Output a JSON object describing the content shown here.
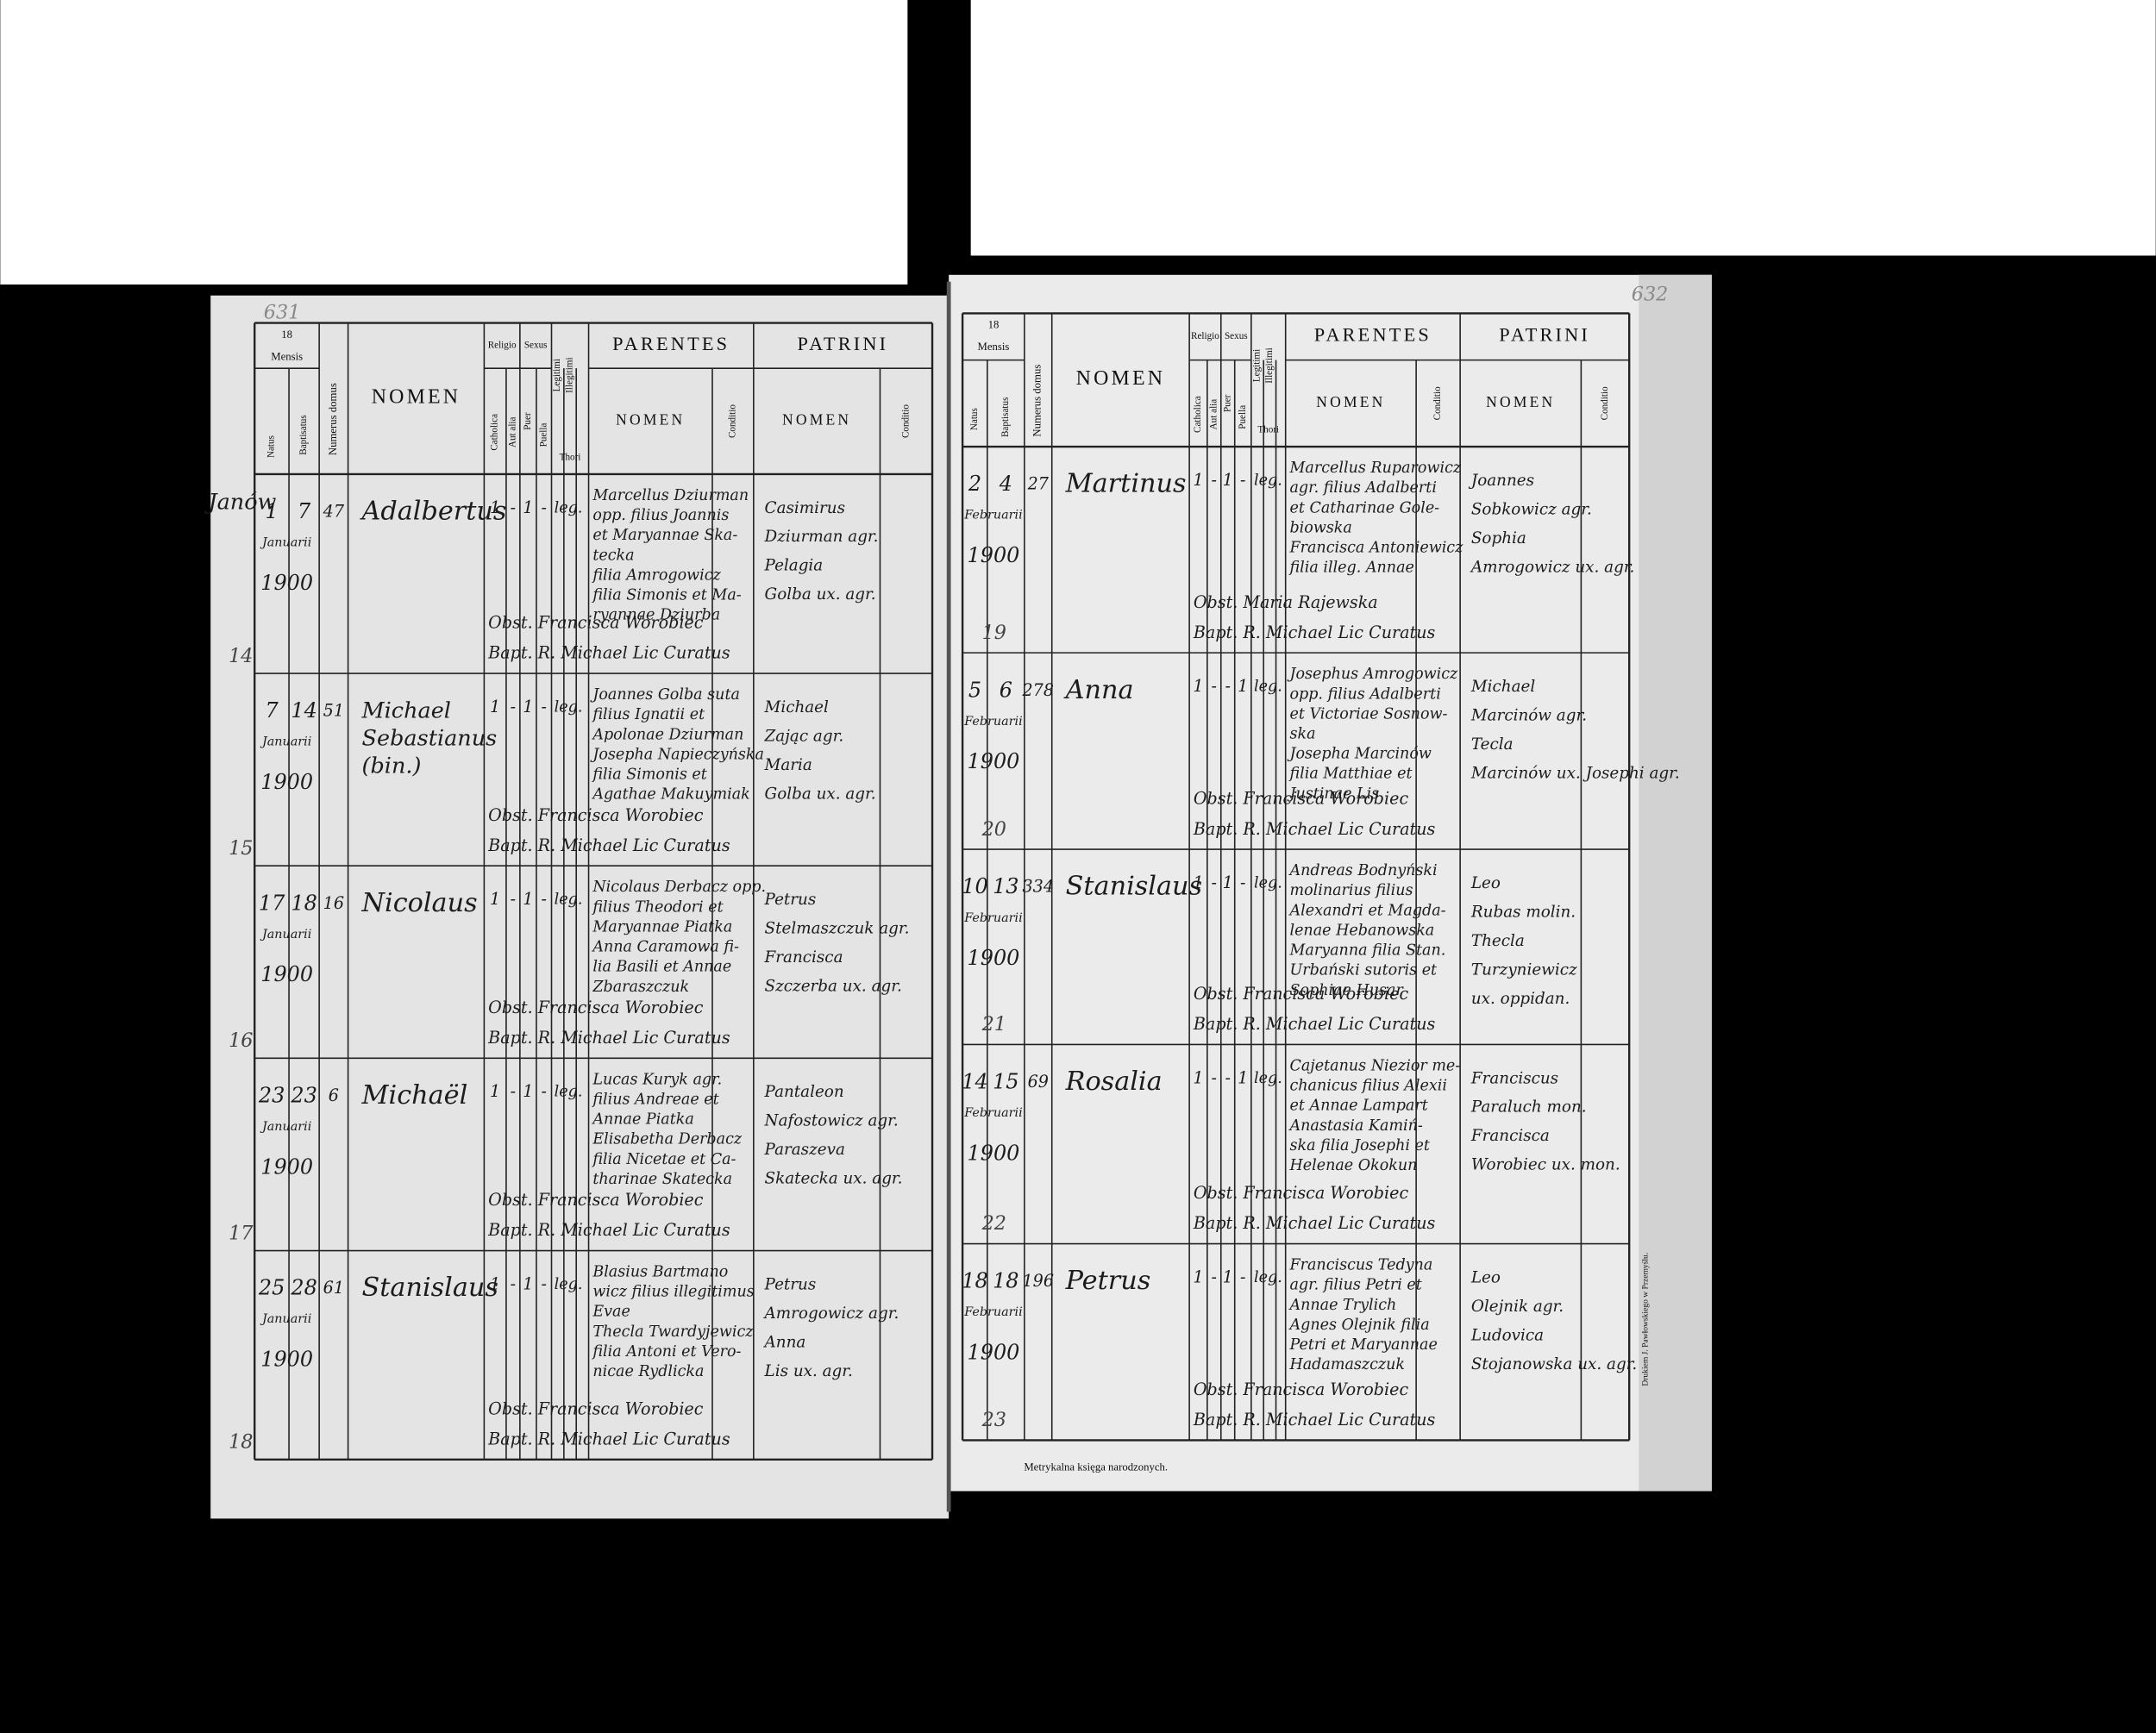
{
  "header": {
    "year": "18",
    "mensis": "Mensis",
    "natus": "Natus",
    "baptisatus": "Baptisatus",
    "domus": "Numerus domus",
    "nomen": "NOMEN",
    "religio": "Religio",
    "catholica": "Catholica",
    "aut_alia": "Aut alia",
    "sexus": "Sexus",
    "puer": "Puer",
    "puella": "Puella",
    "legitimi": "Legitimi",
    "illegitimi": "Illegitimi",
    "thori": "Thori",
    "parentes": "PARENTES",
    "parentes_nomen": "NOMEN",
    "conditio": "Conditio",
    "patrini": "PATRINI",
    "patrini_nomen": "NOMEN"
  },
  "pages": [
    {
      "folio": "631",
      "place": "Janów",
      "records": [
        {
          "natus": "1",
          "baptisatus": "7",
          "mensis": "Januarii",
          "annus": "1900",
          "domus": "47",
          "nomen": [
            "Adalbertus"
          ],
          "catholica": "1",
          "aut_alia": "-",
          "puer": "1",
          "puella": "-",
          "legitimi": "leg.",
          "parentes": [
            "Marcellus Dziurman",
            "opp. filius Joannis",
            "et Maryannae Ska-",
            "tecka",
            "filia Amrogowicz",
            "filia Simonis et Ma-",
            "ryannae Dziurba"
          ],
          "patrini": [
            "Casimirus",
            "Dziurman agr.",
            "Pelagia",
            "Golba ux. agr."
          ],
          "obstetrix": "Obst. Francisca Worobiec",
          "baptizans": "Bapt. R. Michael Lic Curatus",
          "number": "14"
        },
        {
          "natus": "7",
          "baptisatus": "14",
          "mensis": "Januarii",
          "annus": "1900",
          "domus": "51",
          "nomen": [
            "Michael",
            "Sebastianus",
            "(bin.)"
          ],
          "catholica": "1",
          "aut_alia": "-",
          "puer": "1",
          "puella": "-",
          "legitimi": "leg.",
          "parentes": [
            "Joannes Golba suta",
            "filius Ignatii et",
            "Apolonae Dziurman",
            "Josepha Napieczyńska",
            "filia Simonis et",
            "Agathae Makuymiak"
          ],
          "patrini": [
            "Michael",
            "Zając agr.",
            "Maria",
            "Golba ux. agr."
          ],
          "obstetrix": "Obst. Francisca Worobiec",
          "baptizans": "Bapt. R. Michael Lic Curatus",
          "number": "15"
        },
        {
          "natus": "17",
          "baptisatus": "18",
          "mensis": "Januarii",
          "annus": "1900",
          "domus": "16",
          "nomen": [
            "Nicolaus"
          ],
          "catholica": "1",
          "aut_alia": "-",
          "puer": "1",
          "puella": "-",
          "legitimi": "leg.",
          "parentes": [
            "Nicolaus Derbacz opp.",
            "filius Theodori et",
            "Maryannae Piatka",
            "Anna Caramowa fi-",
            "lia Basili et Annae",
            "Zbaraszczuk"
          ],
          "patrini": [
            "Petrus",
            "Stelmaszczuk agr.",
            "Francisca",
            "Szczerba ux. agr."
          ],
          "obstetrix": "Obst. Francisca Worobiec",
          "baptizans": "Bapt. R. Michael Lic Curatus",
          "number": "16"
        },
        {
          "natus": "23",
          "baptisatus": "23",
          "mensis": "Januarii",
          "annus": "1900",
          "domus": "6",
          "nomen": [
            "Michaël"
          ],
          "catholica": "1",
          "aut_alia": "-",
          "puer": "1",
          "puella": "-",
          "legitimi": "leg.",
          "parentes": [
            "Lucas Kuryk agr.",
            "filius Andreae et",
            "Annae Piatka",
            "Elisabetha Derbacz",
            "filia Nicetae et Ca-",
            "tharinae Skatecka"
          ],
          "patrini": [
            "Pantaleon",
            "Nafostowicz agr.",
            "Paraszeva",
            "Skatecka ux. agr."
          ],
          "obstetrix": "Obst. Francisca Worobiec",
          "baptizans": "Bapt. R. Michael Lic Curatus",
          "number": "17"
        },
        {
          "natus": "25",
          "baptisatus": "28",
          "mensis": "Januarii",
          "annus": "1900",
          "domus": "61",
          "nomen": [
            "Stanislaus"
          ],
          "catholica": "1",
          "aut_alia": "-",
          "puer": "1",
          "puella": "-",
          "legitimi": "leg.",
          "parentes": [
            "Blasius Bartmano",
            "wicz filius illegitimus",
            "Evae",
            "Thecla Twardyjewicz",
            "filia Antoni et Vero-",
            "nicae Rydlicka"
          ],
          "patrini": [
            "Petrus",
            "Amrogowicz agr.",
            "Anna",
            "Lis ux. agr."
          ],
          "obstetrix": "Obst. Francisca Worobiec",
          "baptizans": "Bapt. R. Michael Lic Curatus",
          "number": "18"
        }
      ]
    },
    {
      "folio": "632",
      "footer": "Metrykalna księga narodzonych.",
      "imprint": "Drukiem J. Pawłowskiego w Przemyślu.",
      "records": [
        {
          "natus": "2",
          "baptisatus": "4",
          "mensis": "Februarii",
          "annus": "1900",
          "domus": "27",
          "nomen": [
            "Martinus"
          ],
          "catholica": "1",
          "aut_alia": "-",
          "puer": "1",
          "puella": "-",
          "legitimi": "leg.",
          "parentes": [
            "Marcellus Ruparowicz",
            "agr. filius Adalberti",
            "et Catharinae Gole-",
            "biowska",
            "Francisca Antoniewicz",
            "filia illeg. Annae"
          ],
          "patrini": [
            "Joannes",
            "Sobkowicz agr.",
            "Sophia",
            "Amrogowicz ux. agr."
          ],
          "obstetrix": "Obst. Maria Rajewska",
          "baptizans": "Bapt. R. Michael Lic Curatus",
          "number": "19"
        },
        {
          "natus": "5",
          "baptisatus": "6",
          "mensis": "Februarii",
          "annus": "1900",
          "domus": "278",
          "nomen": [
            "Anna"
          ],
          "catholica": "1",
          "aut_alia": "-",
          "puer": "-",
          "puella": "1",
          "legitimi": "leg.",
          "parentes": [
            "Josephus Amrogowicz",
            "opp. filius Adalberti",
            "et Victoriae Sosnow-",
            "ska",
            "Josepha Marcinów",
            "filia Matthiae et",
            "Justinae Lis"
          ],
          "patrini": [
            "Michael",
            "Marcinów agr.",
            "Tecla",
            "Marcinów ux. Josephi agr."
          ],
          "obstetrix": "Obst. Francisca Worobiec",
          "baptizans": "Bapt. R. Michael Lic Curatus",
          "number": "20"
        },
        {
          "natus": "10",
          "baptisatus": "13",
          "mensis": "Februarii",
          "annus": "1900",
          "domus": "334",
          "nomen": [
            "Stanislaus"
          ],
          "catholica": "1",
          "aut_alia": "-",
          "puer": "1",
          "puella": "-",
          "legitimi": "leg.",
          "parentes": [
            "Andreas Bodnyński",
            "molinarius filius",
            "Alexandri et Magda-",
            "lenae Hebanowska",
            "Maryanna filia Stan.",
            "Urbański sutoris et",
            "Sophiae Husar"
          ],
          "patrini": [
            "Leo",
            "Rubas molin.",
            "Thecla",
            "Turzyniewicz",
            "ux. oppidan."
          ],
          "obstetrix": "Obst. Francisca Worobiec",
          "baptizans": "Bapt. R. Michael Lic Curatus",
          "number": "21"
        },
        {
          "natus": "14",
          "baptisatus": "15",
          "mensis": "Februarii",
          "annus": "1900",
          "domus": "69",
          "nomen": [
            "Rosalia"
          ],
          "catholica": "1",
          "aut_alia": "-",
          "puer": "-",
          "puella": "1",
          "legitimi": "leg.",
          "parentes": [
            "Cajetanus Niezior me-",
            "chanicus filius Alexii",
            "et Annae Lampart",
            "Anastasia Kamiń-",
            "ska filia Josephi et",
            "Helenae Okokun"
          ],
          "patrini": [
            "Franciscus",
            "Paraluch mon.",
            "Francisca",
            "Worobiec ux. mon."
          ],
          "obstetrix": "Obst. Francisca Worobiec",
          "baptizans": "Bapt. R. Michael Lic Curatus",
          "number": "22"
        },
        {
          "natus": "18",
          "baptisatus": "18",
          "mensis": "Februarii",
          "annus": "1900",
          "domus": "196",
          "nomen": [
            "Petrus"
          ],
          "catholica": "1",
          "aut_alia": "-",
          "puer": "1",
          "puella": "-",
          "legitimi": "leg.",
          "parentes": [
            "Franciscus Tedyna",
            "agr. filius Petri et",
            "Annae Trylich",
            "Agnes Olejnik filia",
            "Petri et Maryannae",
            "Hadamaszczuk"
          ],
          "patrini": [
            "Leo",
            "Olejnik agr.",
            "Ludovica",
            "Stojanowska ux. agr."
          ],
          "obstetrix": "Obst. Francisca Worobiec",
          "baptizans": "Bapt. R. Michael Lic Curatus",
          "number": "23"
        }
      ]
    }
  ]
}
